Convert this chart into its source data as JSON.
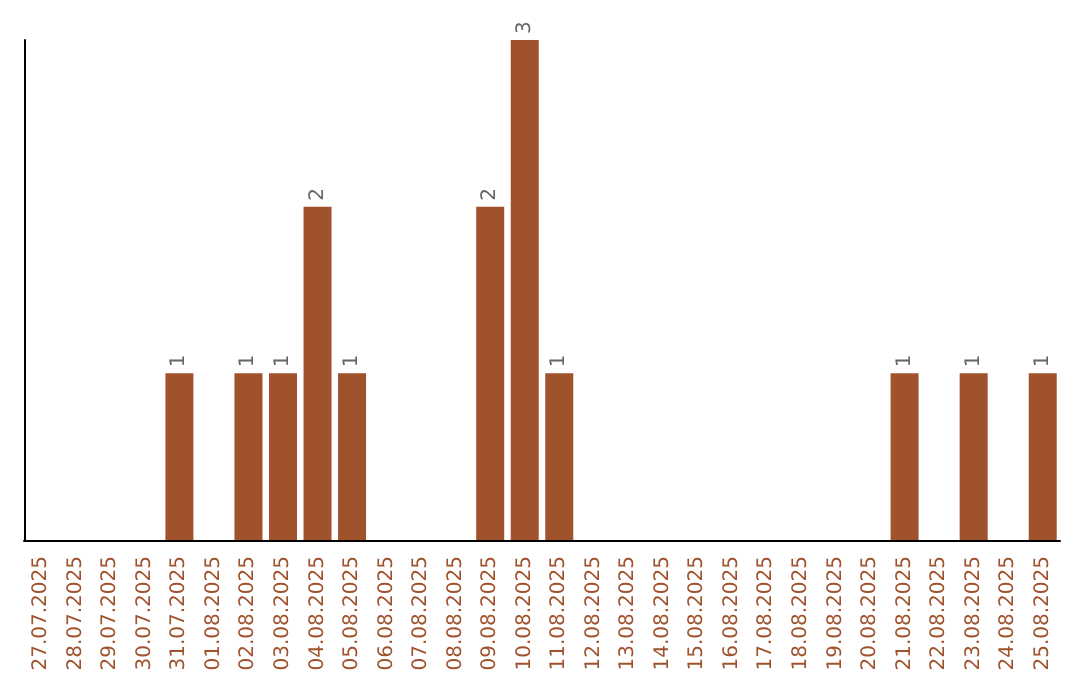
{
  "chart_data": {
    "type": "bar",
    "categories": [
      "27.07.2025",
      "28.07.2025",
      "29.07.2025",
      "30.07.2025",
      "31.07.2025",
      "01.08.2025",
      "02.08.2025",
      "03.08.2025",
      "04.08.2025",
      "05.08.2025",
      "06.08.2025",
      "07.08.2025",
      "08.08.2025",
      "09.08.2025",
      "10.08.2025",
      "11.08.2025",
      "12.08.2025",
      "13.08.2025",
      "14.08.2025",
      "15.08.2025",
      "16.08.2025",
      "17.08.2025",
      "18.08.2025",
      "19.08.2025",
      "20.08.2025",
      "21.08.2025",
      "22.08.2025",
      "23.08.2025",
      "24.08.2025",
      "25.08.2025"
    ],
    "values": [
      0,
      0,
      0,
      0,
      1,
      0,
      1,
      1,
      2,
      1,
      0,
      0,
      0,
      2,
      3,
      1,
      0,
      0,
      0,
      0,
      0,
      0,
      0,
      0,
      0,
      1,
      0,
      1,
      0,
      1
    ],
    "value_labels": [
      null,
      null,
      null,
      null,
      "1",
      null,
      "1",
      "1",
      "2",
      "1",
      null,
      null,
      null,
      "2",
      "3",
      "1",
      null,
      null,
      null,
      null,
      null,
      null,
      null,
      null,
      null,
      "1",
      null,
      "1",
      null,
      "1"
    ],
    "color": "#a0522d",
    "ylim": [
      0,
      3
    ]
  }
}
